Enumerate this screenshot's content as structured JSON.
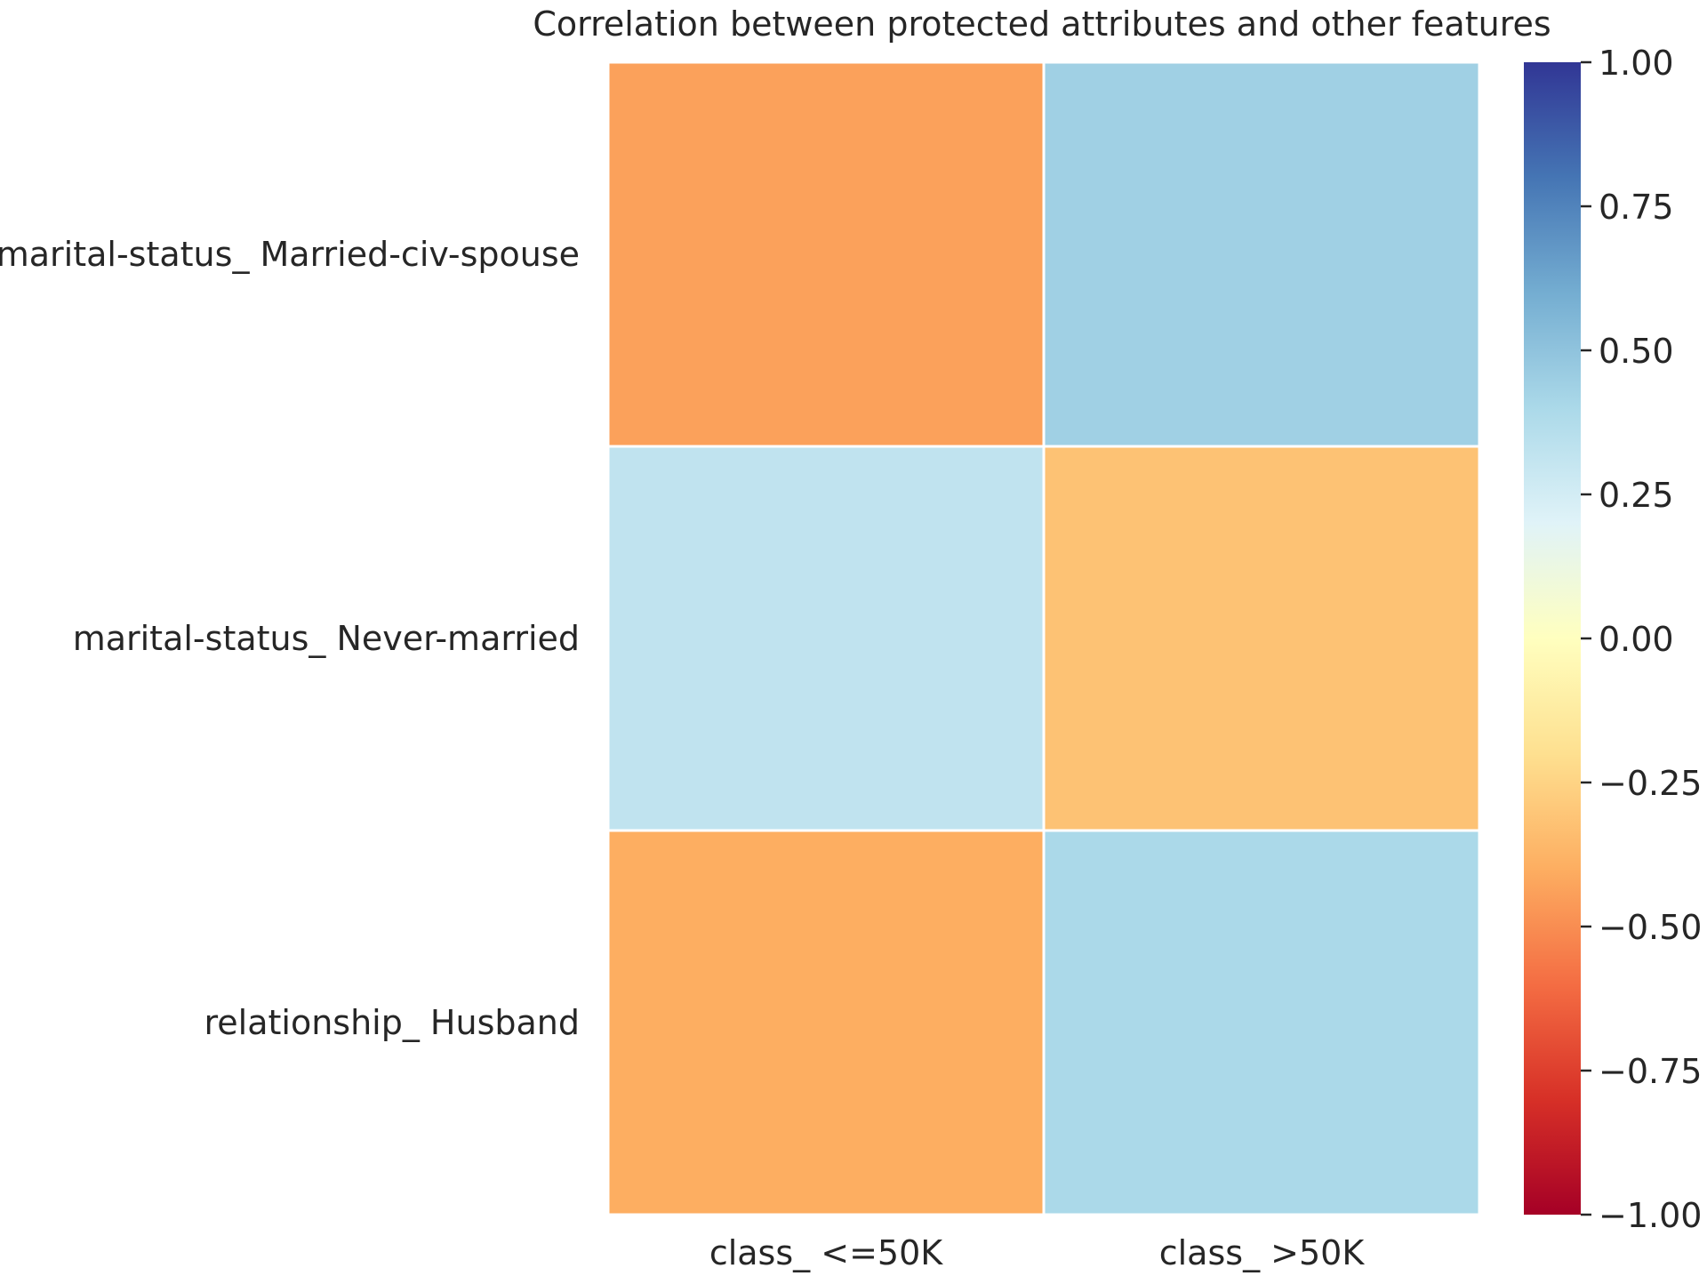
{
  "chart_data": {
    "type": "heatmap",
    "title": "Correlation between protected attributes and other features",
    "xlabel": "",
    "ylabel": "",
    "x_categories": [
      "class_ <=50K",
      "class_ >50K"
    ],
    "y_categories": [
      "marital-status_ Married-civ-spouse",
      "marital-status_ Never-married",
      "relationship_ Husband"
    ],
    "values": [
      [
        -0.44,
        0.44
      ],
      [
        0.32,
        -0.32
      ],
      [
        -0.4,
        0.4
      ]
    ],
    "colormap": "RdYlBu",
    "vmin": -1.0,
    "vmax": 1.0,
    "colorbar": {
      "ticks": [
        1.0,
        0.75,
        0.5,
        0.25,
        0.0,
        -0.25,
        -0.5,
        -0.75,
        -1.0
      ],
      "tick_labels": [
        "1.00",
        "0.75",
        "0.50",
        "0.25",
        "0.00",
        "−0.25",
        "−0.50",
        "−0.75",
        "−1.00"
      ]
    },
    "cell_border_color": "#ffffff",
    "grid": false
  }
}
